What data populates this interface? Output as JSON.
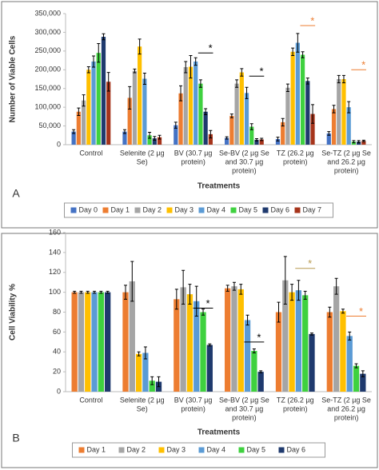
{
  "chart_data": [
    {
      "type": "bar",
      "panel_label": "A",
      "ylabel": "Number of Viable Cells",
      "xlabel": "Treatments",
      "categories": [
        [
          "Control"
        ],
        [
          "Selenite (2 µg",
          "Se)"
        ],
        [
          "BV (30.7 µg",
          "protein)"
        ],
        [
          "Se-BV (2 µg Se",
          "and 30.7 µg",
          "protein)"
        ],
        [
          "TZ (26.2 µg",
          "protein)"
        ],
        [
          "Se-TZ (2 µg Se",
          "and 26.2 µg",
          "protein)"
        ]
      ],
      "ylim": [
        0,
        350000
      ],
      "yticks": [
        0,
        {
          "value": 50000,
          "label": "50,000"
        },
        {
          "value": 100000,
          "label": "100,000"
        },
        {
          "value": 150000,
          "label": "150,000"
        },
        {
          "value": 200000,
          "label": "200,000"
        },
        {
          "value": 250000,
          "label": "250,000"
        },
        {
          "value": 300000,
          "label": "300,000"
        },
        {
          "value": 350000,
          "label": "350,000"
        }
      ],
      "series": [
        {
          "name": "Day 0",
          "color": "#4472c4",
          "values": [
            35000,
            35000,
            52000,
            18000,
            15000,
            30000
          ],
          "errors": [
            5000,
            5000,
            8000,
            3000,
            5000,
            5000
          ]
        },
        {
          "name": "Day 1",
          "color": "#ed7d31",
          "values": [
            88000,
            125000,
            137000,
            77000,
            60000,
            95000
          ],
          "errors": [
            10000,
            30000,
            20000,
            5000,
            10000,
            10000
          ]
        },
        {
          "name": "Day 2",
          "color": "#a5a5a5",
          "values": [
            118000,
            197000,
            207000,
            163000,
            152000,
            175000
          ],
          "errors": [
            15000,
            5000,
            15000,
            10000,
            10000,
            10000
          ]
        },
        {
          "name": "Day 3",
          "color": "#ffc000",
          "values": [
            200000,
            262000,
            208000,
            193000,
            248000,
            175000
          ],
          "errors": [
            8000,
            20000,
            30000,
            10000,
            10000,
            10000
          ]
        },
        {
          "name": "Day 4",
          "color": "#5b9bd5",
          "values": [
            222000,
            176000,
            222000,
            138000,
            272000,
            100000
          ],
          "errors": [
            15000,
            15000,
            10000,
            15000,
            25000,
            15000
          ]
        },
        {
          "name": "Day 5",
          "color": "#3fd13f",
          "values": [
            245000,
            25000,
            163000,
            48000,
            240000,
            8000
          ],
          "errors": [
            25000,
            8000,
            10000,
            8000,
            8000,
            3000
          ]
        },
        {
          "name": "Day 6",
          "color": "#1f3a6e",
          "values": [
            288000,
            17000,
            88000,
            13000,
            170000,
            8000
          ],
          "errors": [
            8000,
            5000,
            8000,
            3000,
            8000,
            3000
          ]
        },
        {
          "name": "Day 7",
          "color": "#a6341b",
          "values": [
            168000,
            20000,
            28000,
            14000,
            82000,
            10000
          ],
          "errors": [
            25000,
            5000,
            10000,
            3000,
            25000,
            2000
          ]
        }
      ],
      "annotations": [
        {
          "text": "*",
          "category_index": 2,
          "y": 245000,
          "color": "#000000"
        },
        {
          "text": "*",
          "category_index": 3,
          "y": 183000,
          "color": "#000000"
        },
        {
          "text": "*",
          "category_index": 4,
          "y": 318000,
          "color": "#ed7d31"
        },
        {
          "text": "*",
          "category_index": 5,
          "y": 200000,
          "color": "#ed7d31"
        }
      ]
    },
    {
      "type": "bar",
      "panel_label": "B",
      "ylabel": "Cell Viability %",
      "xlabel": "Treatments",
      "categories": [
        [
          "Control"
        ],
        [
          "Selenite (2 µg",
          "Se)"
        ],
        [
          "BV (30.7 µg",
          "protein)"
        ],
        [
          "Se-BV (2 µg Se",
          "and 30.7 µg",
          "protein)"
        ],
        [
          "TZ (26.2 µg",
          "protein)"
        ],
        [
          "Se-TZ (2 µg Se",
          "and 26.2 µg",
          "protein)"
        ]
      ],
      "ylim": [
        0,
        160
      ],
      "yticks": [
        0,
        20,
        40,
        60,
        80,
        100,
        120,
        140,
        160
      ],
      "series": [
        {
          "name": "Day 1",
          "color": "#ed7d31",
          "values": [
            100,
            100,
            93,
            104,
            80,
            80
          ],
          "errors": [
            1,
            7,
            10,
            3,
            10,
            5
          ]
        },
        {
          "name": "Day 2",
          "color": "#a5a5a5",
          "values": [
            100,
            111,
            105,
            106,
            112,
            106
          ],
          "errors": [
            1,
            20,
            17,
            4,
            24,
            8
          ]
        },
        {
          "name": "Day 3",
          "color": "#ffc000",
          "values": [
            100,
            38,
            98,
            103,
            100,
            81
          ],
          "errors": [
            1,
            2,
            10,
            5,
            8,
            2
          ]
        },
        {
          "name": "Day 4",
          "color": "#5b9bd5",
          "values": [
            100,
            39,
            91,
            72,
            102,
            56
          ],
          "errors": [
            1,
            6,
            15,
            5,
            10,
            4
          ]
        },
        {
          "name": "Day 5",
          "color": "#3fd13f",
          "values": [
            100,
            11,
            80,
            41,
            97,
            26
          ],
          "errors": [
            1,
            4,
            3,
            2,
            4,
            2
          ]
        },
        {
          "name": "Day 6",
          "color": "#1f3a6e",
          "values": [
            100,
            10,
            47,
            20,
            58,
            18
          ],
          "errors": [
            1,
            5,
            1,
            1,
            1,
            3
          ]
        }
      ],
      "annotations": [
        {
          "text": "*",
          "category_index": 2,
          "y": 84,
          "color": "#000000"
        },
        {
          "text": "*",
          "category_index": 3,
          "y": 50,
          "color": "#000000"
        },
        {
          "text": "*",
          "category_index": 4,
          "y": 124,
          "color": "#b89a50"
        },
        {
          "text": "*",
          "category_index": 5,
          "y": 76,
          "color": "#ed7d31"
        }
      ]
    }
  ]
}
